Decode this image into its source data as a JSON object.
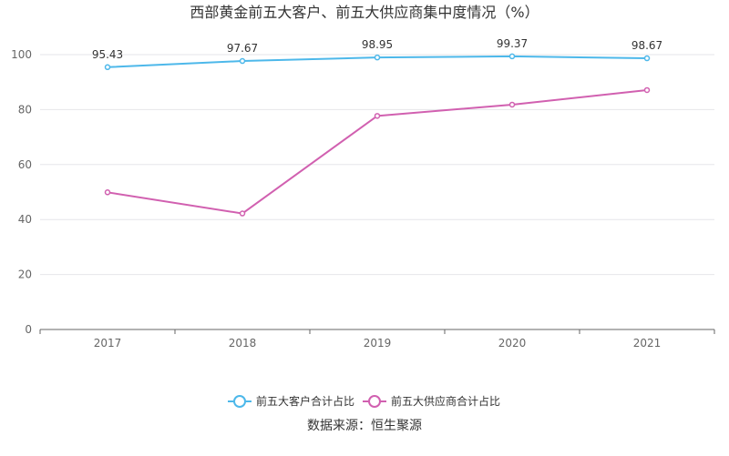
{
  "chart_data": {
    "type": "line",
    "title": "西部黄金前五大客户、前五大供应商集中度情况（%）",
    "categories": [
      "2017",
      "2018",
      "2019",
      "2020",
      "2021"
    ],
    "series": [
      {
        "name": "前五大客户合计占比",
        "values": [
          95.43,
          97.67,
          98.95,
          99.37,
          98.67
        ],
        "color": "#4db8ea",
        "data_labels": true
      },
      {
        "name": "前五大供应商合计占比",
        "values": [
          49.9,
          42.2,
          77.7,
          81.8,
          87.1
        ],
        "color": "#d160b0",
        "data_labels": false
      }
    ],
    "ylim": [
      0,
      100
    ],
    "yticks": [
      0,
      20,
      40,
      60,
      80,
      100
    ],
    "grid": true,
    "legend_position": "bottom"
  },
  "source": "数据来源：恒生聚源"
}
